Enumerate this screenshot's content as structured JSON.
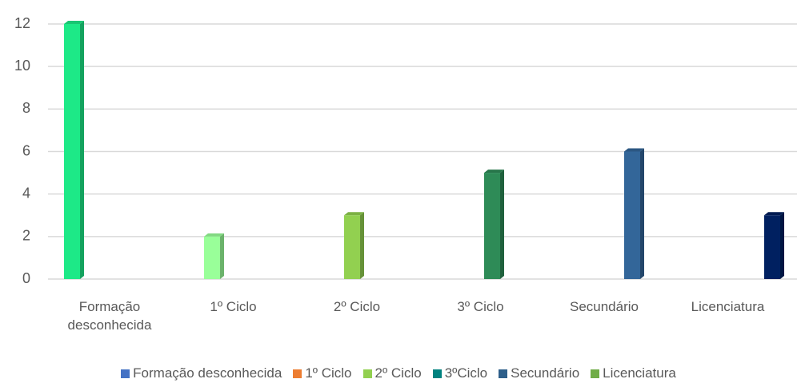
{
  "chart_data": {
    "type": "bar",
    "categories": [
      "Formação desconhecida",
      "1º Ciclo",
      "2º Ciclo",
      "3º Ciclo",
      "Secundário",
      "Licenciatura"
    ],
    "values": [
      12,
      2,
      3,
      5,
      6,
      3
    ],
    "colors": [
      "#1de987",
      "#99ff99",
      "#92d050",
      "#2e8b57",
      "#336699",
      "#002060"
    ],
    "ylim": [
      0,
      12
    ],
    "yticks": [
      0,
      2,
      4,
      6,
      8,
      10,
      12
    ],
    "grid": true,
    "legend": [
      {
        "name": "Formação desconhecida",
        "color": "#4472c4"
      },
      {
        "name": "1º Ciclo",
        "color": "#ed7d31"
      },
      {
        "name": "2º Ciclo",
        "color": "#92d050"
      },
      {
        "name": "3ºCiclo",
        "color": "#00827f"
      },
      {
        "name": "Secundário",
        "color": "#2e5f8a"
      },
      {
        "name": "Licenciatura",
        "color": "#70ad47"
      }
    ]
  }
}
